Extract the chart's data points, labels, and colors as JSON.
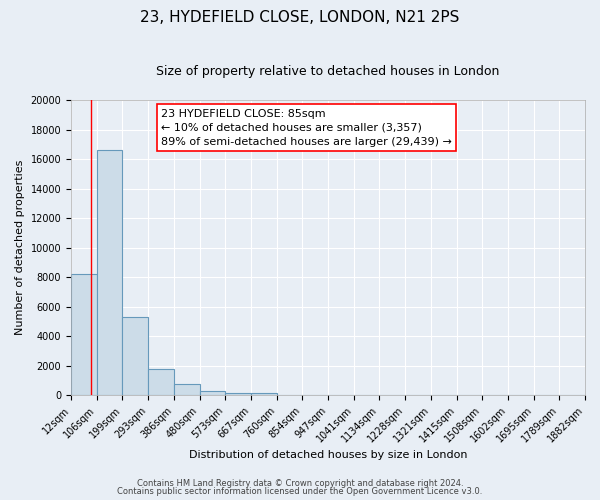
{
  "title": "23, HYDEFIELD CLOSE, LONDON, N21 2PS",
  "subtitle": "Size of property relative to detached houses in London",
  "xlabel": "Distribution of detached houses by size in London",
  "ylabel": "Number of detached properties",
  "bar_edges": [
    12,
    106,
    199,
    293,
    386,
    480,
    573,
    667,
    760,
    854,
    947,
    1041,
    1134,
    1228,
    1321,
    1415,
    1508,
    1602,
    1695,
    1789,
    1882
  ],
  "bar_heights": [
    8200,
    16600,
    5300,
    1800,
    750,
    300,
    200,
    150,
    0,
    0,
    0,
    0,
    0,
    0,
    0,
    0,
    0,
    0,
    0,
    0
  ],
  "bar_color": "#ccdce8",
  "bar_edge_color": "#6699bb",
  "bar_edge_width": 0.8,
  "red_line_x": 85,
  "ylim": [
    0,
    20000
  ],
  "yticks": [
    0,
    2000,
    4000,
    6000,
    8000,
    10000,
    12000,
    14000,
    16000,
    18000,
    20000
  ],
  "annotation_title": "23 HYDEFIELD CLOSE: 85sqm",
  "annotation_line1": "← 10% of detached houses are smaller (3,357)",
  "annotation_line2": "89% of semi-detached houses are larger (29,439) →",
  "footer_line1": "Contains HM Land Registry data © Crown copyright and database right 2024.",
  "footer_line2": "Contains public sector information licensed under the Open Government Licence v3.0.",
  "background_color": "#e8eef5",
  "plot_background": "#e8eef5",
  "grid_color": "#ffffff",
  "title_fontsize": 11,
  "subtitle_fontsize": 9,
  "ylabel_fontsize": 8,
  "xlabel_fontsize": 8,
  "tick_label_fontsize": 7,
  "annotation_fontsize": 8,
  "footer_fontsize": 6
}
